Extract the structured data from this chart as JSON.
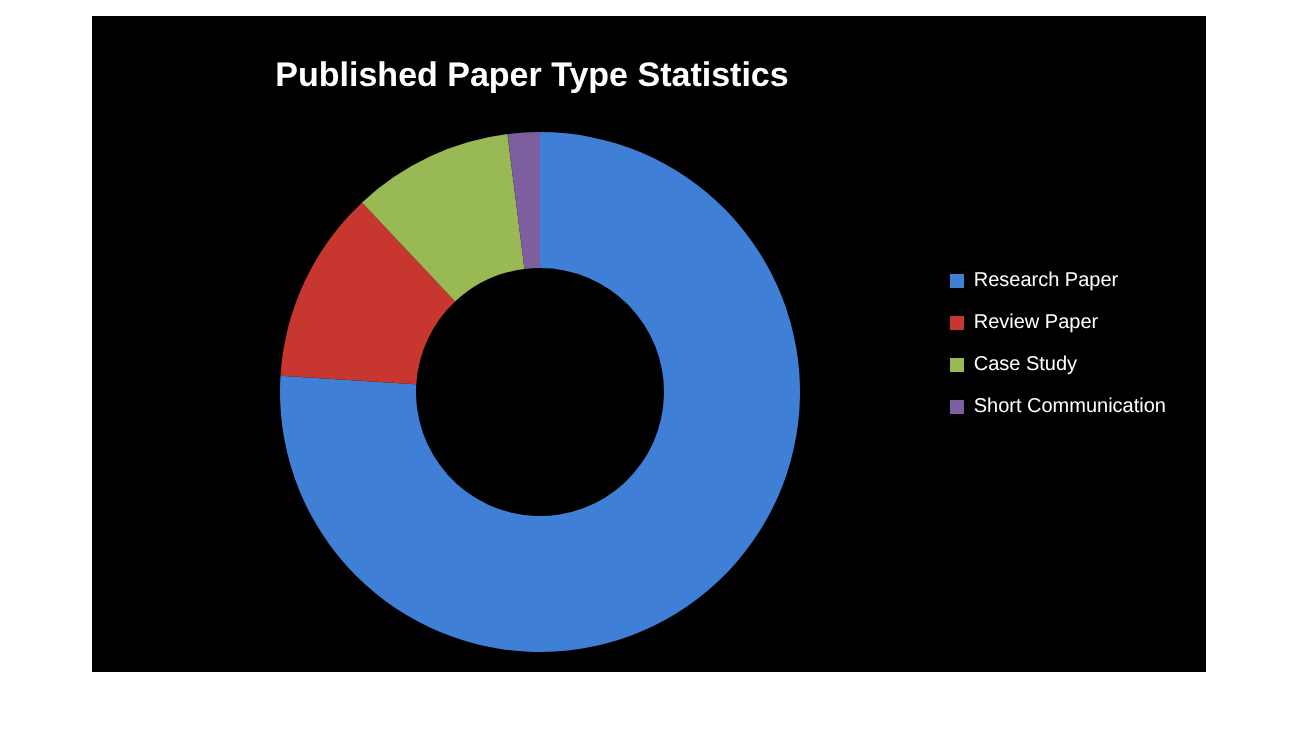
{
  "chart_data": {
    "type": "donut",
    "title": "Published Paper Type Statistics",
    "categories": [
      "Research Paper",
      "Review Paper",
      "Case Study",
      "Short Communication"
    ],
    "values": [
      76,
      12,
      10,
      2
    ],
    "colors": [
      "#3f7fd6",
      "#c8372f",
      "#98b954",
      "#7d5fa0"
    ],
    "legend": "right"
  }
}
